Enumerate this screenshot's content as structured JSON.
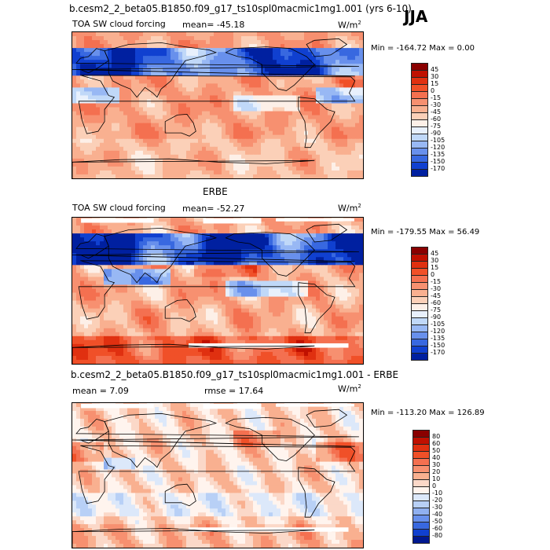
{
  "season": "JJA",
  "panels": [
    {
      "header": "b.cesm2_2_beta05.B1850.f09_g17_ts10spl0macmic1mg1.001 (yrs 6-10)",
      "variable": "TOA SW cloud forcing",
      "mean_text": "mean= -45.18",
      "units": "W/m",
      "units_exp": "2",
      "minmax_text": "Min = -164.72 Max =    0.00",
      "colorbar": {
        "labels": [
          "45",
          "30",
          "15",
          "0",
          "-15",
          "-30",
          "-45",
          "-60",
          "-75",
          "-90",
          "-105",
          "-120",
          "-135",
          "-150",
          "-170"
        ],
        "colors": [
          "#8a0000",
          "#c01000",
          "#e03010",
          "#f05028",
          "#f47050",
          "#f79070",
          "#f9b090",
          "#fbd0b8",
          "#fdf0e8",
          "#e8f0fc",
          "#c0d8f8",
          "#98b8f4",
          "#6890ec",
          "#3868e0",
          "#1040d0",
          "#0020a0"
        ]
      }
    },
    {
      "header": "ERBE",
      "variable": "TOA SW cloud forcing",
      "mean_text": "mean= -52.27",
      "units": "W/m",
      "units_exp": "2",
      "minmax_text": "Min = -179.55 Max =   56.49",
      "colorbar": {
        "labels": [
          "45",
          "30",
          "15",
          "0",
          "-15",
          "-30",
          "-45",
          "-60",
          "-75",
          "-90",
          "-105",
          "-120",
          "-135",
          "-150",
          "-170"
        ],
        "colors": [
          "#8a0000",
          "#c01000",
          "#e03010",
          "#f05028",
          "#f47050",
          "#f79070",
          "#f9b090",
          "#fbd0b8",
          "#fdf0e8",
          "#e8f0fc",
          "#c0d8f8",
          "#98b8f4",
          "#6890ec",
          "#3868e0",
          "#1040d0",
          "#0020a0"
        ]
      }
    },
    {
      "header": "b.cesm2_2_beta05.B1850.f09_g17_ts10spl0macmic1mg1.001 - ERBE",
      "mean_text": "mean =    7.09",
      "rmse_text": "rmse =   17.64",
      "units": "W/m",
      "units_exp": "2",
      "minmax_text": "Min = -113.20 Max =  126.89",
      "colorbar": {
        "labels": [
          "80",
          "60",
          "50",
          "40",
          "30",
          "20",
          "10",
          "0",
          "-10",
          "-20",
          "-30",
          "-40",
          "-50",
          "-60",
          "-80"
        ],
        "colors": [
          "#8a0000",
          "#c01000",
          "#e03010",
          "#f05028",
          "#f47050",
          "#f79070",
          "#f9b090",
          "#fbd8c8",
          "#fff4ee",
          "#dce8fa",
          "#b8d0f6",
          "#90b0f0",
          "#6890ec",
          "#3868e0",
          "#1040d0",
          "#001890"
        ]
      }
    }
  ],
  "chart_data": [
    {
      "type": "heatmap",
      "title": "b.cesm2_2_beta05.B1850.f09_g17_ts10spl0macmic1mg1.001 (yrs 6-10)",
      "subtitle": "TOA SW cloud forcing",
      "season": "JJA",
      "mean": -45.18,
      "min": -164.72,
      "max": 0.0,
      "units": "W/m2",
      "contour_levels": [
        -170,
        -150,
        -135,
        -120,
        -105,
        -90,
        -75,
        -60,
        -45,
        -30,
        -15,
        0,
        15,
        30,
        45
      ]
    },
    {
      "type": "heatmap",
      "title": "ERBE",
      "subtitle": "TOA SW cloud forcing",
      "mean": -52.27,
      "min": -179.55,
      "max": 56.49,
      "units": "W/m2",
      "contour_levels": [
        -170,
        -150,
        -135,
        -120,
        -105,
        -90,
        -75,
        -60,
        -45,
        -30,
        -15,
        0,
        15,
        30,
        45
      ]
    },
    {
      "type": "heatmap",
      "title": "b.cesm2_2_beta05.B1850.f09_g17_ts10spl0macmic1mg1.001 - ERBE",
      "mean": 7.09,
      "rmse": 17.64,
      "min": -113.2,
      "max": 126.89,
      "units": "W/m2",
      "contour_levels": [
        -80,
        -60,
        -50,
        -40,
        -30,
        -20,
        -10,
        0,
        10,
        20,
        30,
        40,
        50,
        60,
        80
      ]
    }
  ]
}
